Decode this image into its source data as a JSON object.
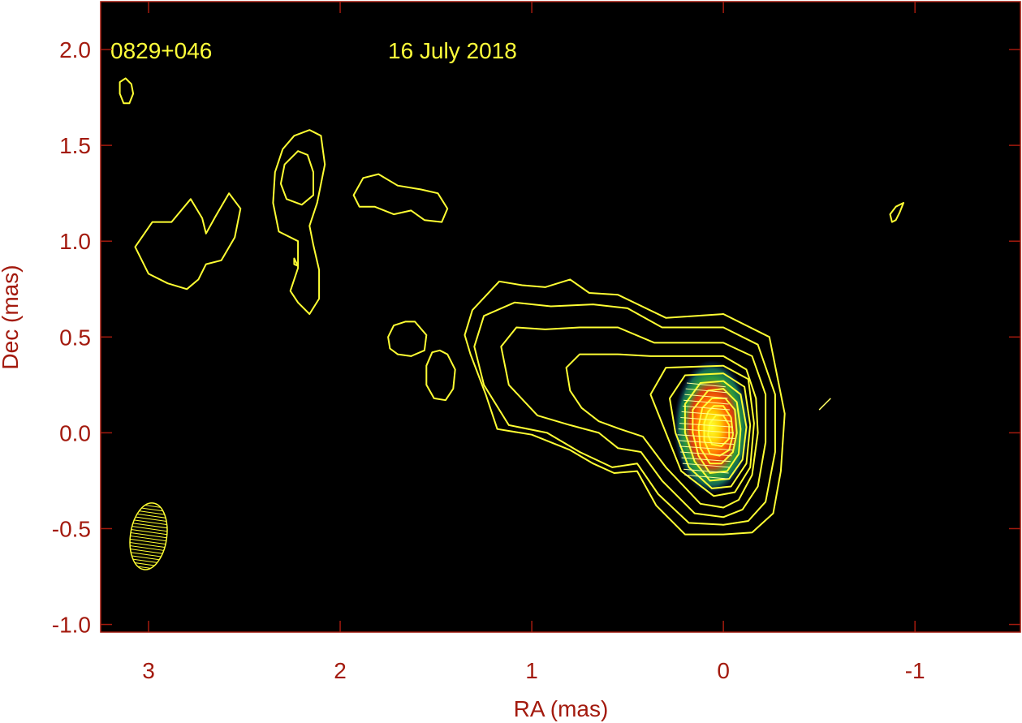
{
  "chart_data": {
    "type": "contour",
    "source": "0829+046",
    "date": "16 July 2018",
    "xlabel": "RA (mas)",
    "ylabel": "Dec (mas)",
    "xlim": [
      3.25,
      -1.55
    ],
    "ylim": [
      -1.04,
      2.25
    ],
    "x_ticks": [
      3,
      2,
      1,
      0,
      -1
    ],
    "x_tick_labels": [
      "3",
      "2",
      "1",
      "0",
      "-1"
    ],
    "y_ticks": [
      2.0,
      1.5,
      1.0,
      0.5,
      0.0,
      -0.5,
      -1.0
    ],
    "y_tick_labels": [
      "2.0",
      "1.5",
      "1.0",
      "0.5",
      "0.0",
      "-0.5",
      "-1.0"
    ],
    "background_color": "#000000",
    "axis_color": "#a31a0e",
    "contour_color": "#ffff33",
    "beam": {
      "center": [
        3.0,
        -0.54
      ],
      "major_axis_mas": 0.35,
      "minor_axis_mas": 0.19,
      "position_angle_deg": 8
    },
    "core": {
      "center": [
        0.06,
        0.03
      ],
      "ra_extent_mas": 0.4,
      "dec_extent_mas": 0.7
    },
    "jet_contours": [
      {
        "level": 1,
        "points": [
          [
            0.3,
            0.6
          ],
          [
            0.55,
            0.72
          ],
          [
            0.7,
            0.73
          ],
          [
            0.8,
            0.8
          ],
          [
            0.93,
            0.76
          ],
          [
            1.05,
            0.77
          ],
          [
            1.17,
            0.79
          ],
          [
            1.31,
            0.64
          ],
          [
            1.35,
            0.51
          ],
          [
            1.32,
            0.41
          ],
          [
            1.24,
            0.2
          ],
          [
            1.18,
            0.02
          ],
          [
            1.0,
            -0.01
          ],
          [
            0.8,
            -0.09
          ],
          [
            0.68,
            -0.16
          ],
          [
            0.57,
            -0.21
          ],
          [
            0.45,
            -0.2
          ],
          [
            0.35,
            -0.38
          ],
          [
            0.2,
            -0.53
          ],
          [
            0.0,
            -0.53
          ],
          [
            -0.15,
            -0.52
          ],
          [
            -0.26,
            -0.42
          ],
          [
            -0.3,
            -0.2
          ],
          [
            -0.32,
            0.1
          ],
          [
            -0.24,
            0.5
          ],
          [
            0.0,
            0.62
          ],
          [
            0.3,
            0.6
          ]
        ]
      },
      {
        "level": 2,
        "points": [
          [
            0.32,
            0.55
          ],
          [
            0.5,
            0.65
          ],
          [
            0.68,
            0.67
          ],
          [
            0.9,
            0.66
          ],
          [
            1.09,
            0.68
          ],
          [
            1.25,
            0.61
          ],
          [
            1.3,
            0.45
          ],
          [
            1.25,
            0.25
          ],
          [
            1.12,
            0.04
          ],
          [
            0.92,
            0.0
          ],
          [
            0.75,
            -0.1
          ],
          [
            0.58,
            -0.18
          ],
          [
            0.45,
            -0.16
          ],
          [
            0.34,
            -0.32
          ],
          [
            0.18,
            -0.47
          ],
          [
            0.0,
            -0.48
          ],
          [
            -0.13,
            -0.46
          ],
          [
            -0.22,
            -0.36
          ],
          [
            -0.27,
            -0.1
          ],
          [
            -0.27,
            0.2
          ],
          [
            -0.18,
            0.46
          ],
          [
            0.0,
            0.55
          ],
          [
            0.32,
            0.55
          ]
        ]
      },
      {
        "level": 3,
        "points": [
          [
            0.36,
            0.47
          ],
          [
            0.55,
            0.55
          ],
          [
            0.75,
            0.55
          ],
          [
            0.93,
            0.54
          ],
          [
            1.08,
            0.55
          ],
          [
            1.16,
            0.45
          ],
          [
            1.12,
            0.25
          ],
          [
            0.97,
            0.09
          ],
          [
            0.8,
            0.04
          ],
          [
            0.65,
            0.0
          ],
          [
            0.55,
            -0.08
          ],
          [
            0.43,
            -0.1
          ],
          [
            0.32,
            -0.25
          ],
          [
            0.15,
            -0.42
          ],
          [
            0.0,
            -0.44
          ],
          [
            -0.1,
            -0.4
          ],
          [
            -0.18,
            -0.28
          ],
          [
            -0.22,
            -0.05
          ],
          [
            -0.22,
            0.2
          ],
          [
            -0.15,
            0.4
          ],
          [
            0.0,
            0.47
          ],
          [
            0.36,
            0.47
          ]
        ]
      },
      {
        "level": 4,
        "points": [
          [
            0.38,
            0.4
          ],
          [
            0.55,
            0.41
          ],
          [
            0.75,
            0.41
          ],
          [
            0.82,
            0.34
          ],
          [
            0.8,
            0.22
          ],
          [
            0.74,
            0.13
          ],
          [
            0.65,
            0.06
          ],
          [
            0.54,
            0.02
          ],
          [
            0.42,
            -0.02
          ],
          [
            0.3,
            -0.18
          ],
          [
            0.12,
            -0.37
          ],
          [
            0.0,
            -0.39
          ],
          [
            -0.08,
            -0.35
          ],
          [
            -0.15,
            -0.22
          ],
          [
            -0.18,
            0.0
          ],
          [
            -0.17,
            0.18
          ],
          [
            -0.12,
            0.33
          ],
          [
            0.0,
            0.4
          ],
          [
            0.38,
            0.4
          ]
        ]
      },
      {
        "level": 5,
        "points": [
          [
            0.3,
            0.34
          ],
          [
            0.0,
            0.35
          ],
          [
            -0.13,
            0.28
          ],
          [
            -0.16,
            0.05
          ],
          [
            -0.14,
            -0.18
          ],
          [
            -0.06,
            -0.31
          ],
          [
            0.05,
            -0.33
          ],
          [
            0.22,
            -0.2
          ],
          [
            0.3,
            0.0
          ],
          [
            0.38,
            0.2
          ],
          [
            0.3,
            0.34
          ]
        ]
      },
      {
        "level": 6,
        "points": [
          [
            0.2,
            0.3
          ],
          [
            0.0,
            0.31
          ],
          [
            -0.11,
            0.24
          ],
          [
            -0.14,
            0.04
          ],
          [
            -0.12,
            -0.16
          ],
          [
            -0.04,
            -0.28
          ],
          [
            0.06,
            -0.29
          ],
          [
            0.18,
            -0.18
          ],
          [
            0.25,
            0.0
          ],
          [
            0.28,
            0.18
          ],
          [
            0.2,
            0.3
          ]
        ]
      },
      {
        "level": 7,
        "points": [
          [
            0.12,
            0.26
          ],
          [
            0.0,
            0.27
          ],
          [
            -0.09,
            0.2
          ],
          [
            -0.12,
            0.03
          ],
          [
            -0.1,
            -0.14
          ],
          [
            -0.03,
            -0.24
          ],
          [
            0.07,
            -0.25
          ],
          [
            0.15,
            -0.15
          ],
          [
            0.2,
            0.0
          ],
          [
            0.2,
            0.15
          ],
          [
            0.12,
            0.26
          ]
        ]
      },
      {
        "level": 8,
        "points": [
          [
            0.08,
            0.22
          ],
          [
            0.0,
            0.23
          ],
          [
            -0.07,
            0.16
          ],
          [
            -0.09,
            0.02
          ],
          [
            -0.08,
            -0.11
          ],
          [
            -0.02,
            -0.2
          ],
          [
            0.07,
            -0.21
          ],
          [
            0.13,
            -0.12
          ],
          [
            0.16,
            0.0
          ],
          [
            0.16,
            0.12
          ],
          [
            0.08,
            0.22
          ]
        ]
      },
      {
        "level": 9,
        "points": [
          [
            0.06,
            0.18
          ],
          [
            -0.01,
            0.18
          ],
          [
            -0.06,
            0.12
          ],
          [
            -0.07,
            0.0
          ],
          [
            -0.05,
            -0.1
          ],
          [
            0.01,
            -0.16
          ],
          [
            0.07,
            -0.16
          ],
          [
            0.12,
            -0.08
          ],
          [
            0.13,
            0.03
          ],
          [
            0.11,
            0.13
          ],
          [
            0.06,
            0.18
          ]
        ]
      },
      {
        "level": 10,
        "points": [
          [
            0.05,
            0.14
          ],
          [
            0.0,
            0.14
          ],
          [
            -0.04,
            0.08
          ],
          [
            -0.05,
            -0.01
          ],
          [
            -0.03,
            -0.09
          ],
          [
            0.02,
            -0.12
          ],
          [
            0.07,
            -0.11
          ],
          [
            0.1,
            -0.04
          ],
          [
            0.1,
            0.05
          ],
          [
            0.08,
            0.11
          ],
          [
            0.05,
            0.14
          ]
        ]
      },
      {
        "level": 11,
        "points": [
          [
            0.04,
            0.09
          ],
          [
            0.0,
            0.09
          ],
          [
            -0.03,
            0.04
          ],
          [
            -0.03,
            -0.03
          ],
          [
            0.01,
            -0.07
          ],
          [
            0.06,
            -0.06
          ],
          [
            0.08,
            -0.01
          ],
          [
            0.07,
            0.05
          ],
          [
            0.04,
            0.09
          ]
        ]
      }
    ],
    "isolated_contours": [
      {
        "name": "top-left-blob",
        "points": [
          [
            3.12,
            1.85
          ],
          [
            3.09,
            1.82
          ],
          [
            3.08,
            1.77
          ],
          [
            3.1,
            1.72
          ],
          [
            3.13,
            1.72
          ],
          [
            3.15,
            1.77
          ],
          [
            3.15,
            1.83
          ],
          [
            3.12,
            1.85
          ]
        ]
      },
      {
        "name": "left-blob",
        "points": [
          [
            2.88,
            1.1
          ],
          [
            2.78,
            1.22
          ],
          [
            2.72,
            1.12
          ],
          [
            2.7,
            1.04
          ],
          [
            2.65,
            1.13
          ],
          [
            2.58,
            1.25
          ],
          [
            2.52,
            1.17
          ],
          [
            2.55,
            1.02
          ],
          [
            2.62,
            0.9
          ],
          [
            2.7,
            0.88
          ],
          [
            2.74,
            0.8
          ],
          [
            2.8,
            0.75
          ],
          [
            2.9,
            0.78
          ],
          [
            3.0,
            0.83
          ],
          [
            3.07,
            0.97
          ],
          [
            2.98,
            1.1
          ],
          [
            2.88,
            1.1
          ]
        ]
      },
      {
        "name": "upper-middle-outer",
        "points": [
          [
            2.24,
            1.55
          ],
          [
            2.3,
            1.48
          ],
          [
            2.34,
            1.36
          ],
          [
            2.35,
            1.2
          ],
          [
            2.32,
            1.05
          ],
          [
            2.22,
            1.0
          ],
          [
            2.22,
            0.86
          ],
          [
            2.26,
            0.74
          ],
          [
            2.22,
            0.68
          ],
          [
            2.16,
            0.62
          ],
          [
            2.11,
            0.7
          ],
          [
            2.11,
            0.85
          ],
          [
            2.14,
            0.98
          ],
          [
            2.16,
            1.08
          ],
          [
            2.12,
            1.2
          ],
          [
            2.08,
            1.4
          ],
          [
            2.1,
            1.55
          ],
          [
            2.16,
            1.58
          ],
          [
            2.24,
            1.55
          ]
        ]
      },
      {
        "name": "upper-middle-inner",
        "points": [
          [
            2.22,
            1.47
          ],
          [
            2.29,
            1.4
          ],
          [
            2.31,
            1.3
          ],
          [
            2.28,
            1.22
          ],
          [
            2.2,
            1.19
          ],
          [
            2.14,
            1.24
          ],
          [
            2.14,
            1.36
          ],
          [
            2.17,
            1.45
          ],
          [
            2.22,
            1.47
          ]
        ]
      },
      {
        "name": "tiny-dot",
        "points": [
          [
            2.24,
            0.91
          ],
          [
            2.23,
            0.89
          ],
          [
            2.22,
            0.87
          ],
          [
            2.24,
            0.88
          ],
          [
            2.24,
            0.91
          ]
        ]
      },
      {
        "name": "upper-right-blob",
        "points": [
          [
            1.8,
            1.35
          ],
          [
            1.7,
            1.29
          ],
          [
            1.58,
            1.27
          ],
          [
            1.49,
            1.25
          ],
          [
            1.44,
            1.17
          ],
          [
            1.47,
            1.1
          ],
          [
            1.56,
            1.11
          ],
          [
            1.63,
            1.16
          ],
          [
            1.72,
            1.14
          ],
          [
            1.82,
            1.18
          ],
          [
            1.9,
            1.18
          ],
          [
            1.93,
            1.24
          ],
          [
            1.88,
            1.33
          ],
          [
            1.8,
            1.35
          ]
        ]
      },
      {
        "name": "middle-blob",
        "points": [
          [
            1.66,
            0.58
          ],
          [
            1.72,
            0.56
          ],
          [
            1.75,
            0.5
          ],
          [
            1.74,
            0.44
          ],
          [
            1.7,
            0.41
          ],
          [
            1.63,
            0.4
          ],
          [
            1.56,
            0.43
          ],
          [
            1.55,
            0.51
          ],
          [
            1.61,
            0.58
          ],
          [
            1.66,
            0.58
          ]
        ]
      },
      {
        "name": "lower-middle-blob",
        "points": [
          [
            1.48,
            0.43
          ],
          [
            1.52,
            0.42
          ],
          [
            1.55,
            0.35
          ],
          [
            1.55,
            0.25
          ],
          [
            1.51,
            0.18
          ],
          [
            1.45,
            0.17
          ],
          [
            1.41,
            0.23
          ],
          [
            1.4,
            0.33
          ],
          [
            1.44,
            0.41
          ],
          [
            1.48,
            0.43
          ]
        ]
      },
      {
        "name": "right-blob",
        "points": [
          [
            -0.94,
            1.2
          ],
          [
            -0.92,
            1.15
          ],
          [
            -0.9,
            1.11
          ],
          [
            -0.88,
            1.1
          ],
          [
            -0.87,
            1.14
          ],
          [
            -0.9,
            1.18
          ],
          [
            -0.94,
            1.2
          ]
        ]
      }
    ],
    "evpa_segment": [
      [
        -0.56,
        0.18
      ],
      [
        -0.5,
        0.12
      ]
    ]
  }
}
